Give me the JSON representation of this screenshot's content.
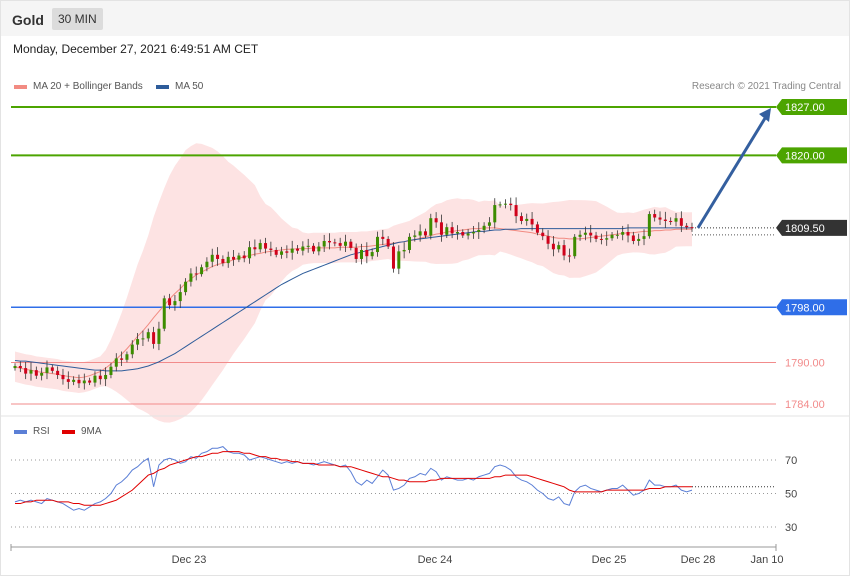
{
  "header": {
    "instrument": "Gold",
    "timeframe": "30 MIN",
    "datetime": "Monday, December 27, 2021 6:49:51 AM CET",
    "credit": "Research © 2021 Trading Central"
  },
  "legend": {
    "ma20": {
      "label": "MA 20 + Bollinger Bands",
      "color": "#f28b82"
    },
    "ma50": {
      "label": "MA 50",
      "color": "#2e5c9a"
    }
  },
  "rsi_legend": {
    "rsi": {
      "label": "RSI",
      "color": "#5b7fd6"
    },
    "ma9": {
      "label": "9MA",
      "color": "#e00000"
    }
  },
  "colors": {
    "bull": "#3d8c00",
    "bear": "#d0021b",
    "band_fill": "#fde3e3",
    "support_blue": "#2f6ee8",
    "resistance_green": "#4ca400",
    "pivot_red": "#f28b8b",
    "arrow": "#345f9f",
    "last_price_bg": "#333333"
  },
  "chart_data": [
    {
      "type": "candlestick",
      "ylim": [
        1781,
        1831
      ],
      "x_labels": [
        "Dec 23",
        "Dec 24",
        "Dec 25",
        "Dec 28",
        "Jan 10"
      ],
      "levels": [
        {
          "value": 1827.0,
          "label": "1827.00",
          "kind": "resistance"
        },
        {
          "value": 1820.0,
          "label": "1820.00",
          "kind": "resistance"
        },
        {
          "value": 1809.5,
          "label": "1809.50",
          "kind": "last"
        },
        {
          "value": 1798.0,
          "label": "1798.00",
          "kind": "support"
        },
        {
          "value": 1790.0,
          "label": "1790.00",
          "kind": "minor"
        },
        {
          "value": 1784.0,
          "label": "1784.00",
          "kind": "minor"
        }
      ],
      "arrow": {
        "from": 1809.5,
        "to": 1827.0
      },
      "close": [
        1789.5,
        1789.2,
        1788.4,
        1788.9,
        1788.1,
        1788.5,
        1789.3,
        1788.8,
        1788.2,
        1787.6,
        1787.2,
        1787.5,
        1787.0,
        1787.4,
        1787.1,
        1788.1,
        1787.6,
        1788.2,
        1789.4,
        1790.6,
        1790.4,
        1791.2,
        1792.6,
        1793.4,
        1793.5,
        1794.4,
        1792.7,
        1794.9,
        1799.3,
        1798.3,
        1798.9,
        1800.2,
        1801.7,
        1802.9,
        1802.8,
        1803.8,
        1804.6,
        1805.6,
        1805.0,
        1804.4,
        1805.3,
        1804.9,
        1805.5,
        1805.1,
        1806.7,
        1806.4,
        1807.3,
        1806.5,
        1806.3,
        1805.6,
        1806.1,
        1805.9,
        1806.5,
        1806.2,
        1806.8,
        1806.9,
        1806.1,
        1806.8,
        1807.6,
        1807.4,
        1807.3,
        1806.9,
        1807.5,
        1806.6,
        1805.0,
        1806.3,
        1805.4,
        1806.0,
        1808.2,
        1807.9,
        1806.8,
        1803.6,
        1806.1,
        1806.3,
        1808.2,
        1808.4,
        1809.0,
        1808.4,
        1810.9,
        1810.3,
        1808.5,
        1809.6,
        1808.7,
        1808.9,
        1808.4,
        1808.7,
        1808.9,
        1809.2,
        1809.8,
        1810.3,
        1812.8,
        1812.9,
        1813.0,
        1812.8,
        1811.2,
        1810.5,
        1810.8,
        1810.0,
        1808.8,
        1808.3,
        1807.2,
        1806.4,
        1807.0,
        1805.5,
        1805.4,
        1808.2,
        1808.5,
        1808.8,
        1808.4,
        1807.9,
        1807.8,
        1808.0,
        1808.5,
        1808.5,
        1808.9,
        1808.4,
        1807.6,
        1807.9,
        1808.3,
        1811.5,
        1811.0,
        1810.7,
        1810.5,
        1810.4,
        1810.9,
        1809.8,
        1809.6,
        1809.5
      ],
      "series": [
        {
          "name": "MA 20",
          "values": [
            1789.4,
            1789.2,
            1789.0,
            1788.9,
            1788.7,
            1788.6,
            1788.5,
            1788.4,
            1788.3,
            1788.1,
            1788.0,
            1787.9,
            1787.8,
            1787.9,
            1788.1,
            1788.4,
            1788.7,
            1789.2,
            1789.8,
            1790.5,
            1791.2,
            1792.0,
            1792.9,
            1793.8,
            1794.6,
            1795.5,
            1796.5,
            1797.4,
            1798.3,
            1799.2,
            1800.0,
            1800.7,
            1801.5,
            1802.1,
            1802.7,
            1803.1,
            1803.5,
            1803.9,
            1804.2,
            1804.4,
            1804.6,
            1804.9,
            1805.1,
            1805.3,
            1805.5,
            1805.7,
            1805.8,
            1806.0,
            1806.1,
            1806.2,
            1806.3,
            1806.4,
            1806.4,
            1806.5,
            1806.5,
            1806.5,
            1806.6,
            1806.6,
            1806.6,
            1806.6,
            1806.6,
            1806.7,
            1806.7,
            1806.7,
            1806.7,
            1806.8,
            1806.8,
            1806.9,
            1807.0,
            1807.1,
            1807.2,
            1807.3,
            1807.4,
            1807.5,
            1807.6,
            1807.8,
            1808.0,
            1808.2,
            1808.4,
            1808.6,
            1808.7,
            1808.9,
            1809.0,
            1809.1,
            1809.2,
            1809.3,
            1809.4,
            1809.4,
            1809.5,
            1809.5,
            1809.5,
            1809.4,
            1809.3,
            1809.2,
            1809.1,
            1809.0,
            1808.9,
            1808.8,
            1808.6,
            1808.5,
            1808.3,
            1808.1,
            1808.0,
            1808.0,
            1807.9,
            1807.9,
            1807.9,
            1808.0,
            1808.1,
            1808.2,
            1808.3,
            1808.4,
            1808.5,
            1808.6,
            1808.7,
            1808.8,
            1808.8,
            1808.9,
            1809.0,
            1809.0,
            1809.1,
            1809.1,
            1809.2,
            1809.2,
            1809.3,
            1809.3,
            1809.3,
            1809.3
          ]
        },
        {
          "name": "MA 50",
          "values": [
            1790.3,
            1790.2,
            1790.2,
            1790.1,
            1790.0,
            1789.9,
            1789.8,
            1789.7,
            1789.6,
            1789.5,
            1789.4,
            1789.3,
            1789.2,
            1789.1,
            1789.0,
            1788.9,
            1788.9,
            1788.8,
            1788.8,
            1788.8,
            1788.8,
            1788.9,
            1789.0,
            1789.1,
            1789.3,
            1789.5,
            1789.8,
            1790.1,
            1790.5,
            1790.9,
            1791.3,
            1791.8,
            1792.3,
            1792.8,
            1793.3,
            1793.8,
            1794.3,
            1794.8,
            1795.3,
            1795.8,
            1796.3,
            1796.8,
            1797.3,
            1797.8,
            1798.3,
            1798.8,
            1799.3,
            1799.8,
            1800.3,
            1800.8,
            1801.3,
            1801.7,
            1802.1,
            1802.5,
            1802.9,
            1803.2,
            1803.5,
            1803.8,
            1804.1,
            1804.4,
            1804.7,
            1805.0,
            1805.3,
            1805.6,
            1805.8,
            1806.0,
            1806.2,
            1806.4,
            1806.6,
            1806.8,
            1807.0,
            1807.2,
            1807.4,
            1807.5,
            1807.7,
            1807.8,
            1807.9,
            1808.0,
            1808.1,
            1808.2,
            1808.3,
            1808.4,
            1808.5,
            1808.6,
            1808.7,
            1808.8,
            1808.9,
            1809.0,
            1809.0,
            1809.1,
            1809.2,
            1809.2,
            1809.3,
            1809.3,
            1809.3,
            1809.4,
            1809.4,
            1809.4,
            1809.4,
            1809.4,
            1809.4,
            1809.4,
            1809.4,
            1809.4,
            1809.4,
            1809.4,
            1809.4,
            1809.4,
            1809.4,
            1809.4,
            1809.4,
            1809.4,
            1809.4,
            1809.4,
            1809.4,
            1809.5,
            1809.5,
            1809.5,
            1809.5,
            1809.5,
            1809.5,
            1809.5,
            1809.5,
            1809.5,
            1809.5,
            1809.5,
            1809.5,
            1809.5
          ]
        }
      ]
    },
    {
      "type": "line",
      "title": "RSI",
      "ylim": [
        22,
        82
      ],
      "y_ticks": [
        70,
        50,
        30
      ],
      "series": [
        {
          "name": "RSI",
          "values": [
            45,
            46,
            45,
            46,
            45,
            44,
            47,
            46,
            45,
            44,
            42,
            40,
            41,
            40,
            42,
            44,
            45,
            47,
            50,
            55,
            57,
            60,
            64,
            66,
            69,
            71,
            54,
            67,
            70,
            71,
            70,
            68,
            69,
            72,
            71,
            74,
            75,
            77,
            77,
            78,
            75,
            74,
            74,
            73,
            70,
            71,
            72,
            71,
            70,
            69,
            68,
            69,
            68,
            69,
            68,
            68,
            67,
            68,
            69,
            68,
            67,
            66,
            67,
            63,
            57,
            55,
            58,
            56,
            60,
            64,
            61,
            52,
            53,
            55,
            59,
            60,
            62,
            61,
            65,
            63,
            58,
            60,
            59,
            58,
            58,
            59,
            58,
            60,
            61,
            62,
            66,
            67,
            66,
            64,
            60,
            58,
            57,
            55,
            52,
            50,
            47,
            46,
            48,
            44,
            43,
            51,
            54,
            55,
            53,
            52,
            51,
            52,
            53,
            53,
            55,
            52,
            49,
            50,
            52,
            58,
            55,
            55,
            54,
            54,
            55,
            52,
            51,
            52
          ]
        },
        {
          "name": "9MA",
          "values": [
            44,
            44,
            45,
            45,
            46,
            46,
            46,
            46,
            45,
            45,
            45,
            44,
            44,
            43,
            43,
            43,
            43,
            44,
            45,
            46,
            48,
            50,
            52,
            55,
            58,
            61,
            62,
            64,
            65,
            67,
            68,
            69,
            70,
            71,
            72,
            72,
            73,
            74,
            74,
            75,
            75,
            75,
            75,
            74,
            74,
            73,
            72,
            72,
            71,
            71,
            70,
            70,
            69,
            69,
            68,
            68,
            68,
            67,
            67,
            67,
            67,
            66,
            66,
            66,
            65,
            64,
            63,
            62,
            61,
            60,
            60,
            59,
            58,
            58,
            57,
            57,
            57,
            57,
            58,
            58,
            59,
            59,
            59,
            59,
            59,
            59,
            59,
            59,
            59,
            59,
            60,
            60,
            61,
            61,
            61,
            61,
            61,
            60,
            59,
            58,
            57,
            56,
            55,
            54,
            52,
            51,
            51,
            51,
            51,
            51,
            51,
            52,
            52,
            52,
            52,
            52,
            52,
            52,
            52,
            53,
            53,
            53,
            54,
            54,
            54,
            54,
            54,
            54
          ]
        }
      ]
    }
  ]
}
